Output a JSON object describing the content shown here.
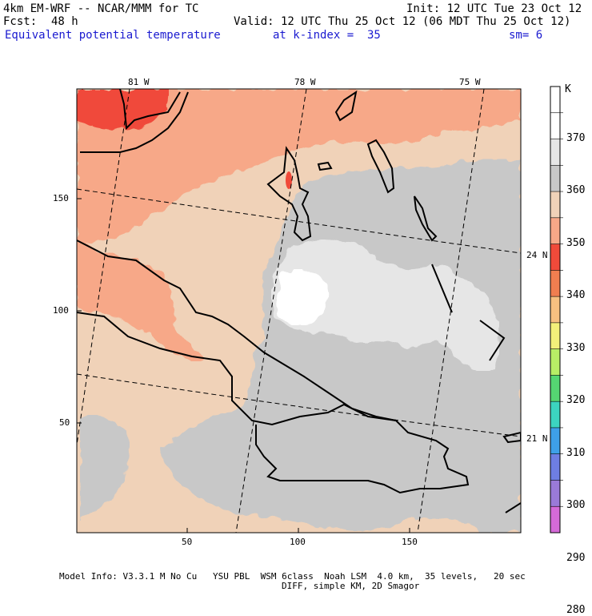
{
  "header": {
    "model": "4km EM-WRF -- NCAR/MMM for TC",
    "init": "Init: 12 UTC Tue 23 Oct 12",
    "fcst_label": "Fcst:",
    "fcst_value": "48 h",
    "valid": "Valid: 12 UTC Thu 25 Oct 12 (06 MDT Thu 25 Oct 12)",
    "field": "Equivalent potential temperature",
    "kindex": "at k-index =  35",
    "sm": "sm= 6"
  },
  "axes": {
    "lon_labels": [
      "81 W",
      "78 W",
      "75 W"
    ],
    "lat_labels": [
      "24 N",
      "21 N"
    ],
    "y_ticks": [
      "150",
      "100",
      "50"
    ],
    "x_ticks": [
      "50",
      "100",
      "150"
    ]
  },
  "colorbar": {
    "unit": "K",
    "levels": [
      "370",
      "360",
      "350",
      "340",
      "330",
      "320",
      "310",
      "300",
      "290",
      "280"
    ],
    "colors": [
      "#ffffff",
      "#ffffff",
      "#e6e6e6",
      "#c8c8c8",
      "#f0d2b8",
      "#f7a888",
      "#f04a3a",
      "#f07e50",
      "#f7c080",
      "#f3f07a",
      "#b8ee66",
      "#55d672",
      "#3cd4c0",
      "#3ea0e8",
      "#6e7ee2",
      "#9a7ad8",
      "#d56ad8"
    ]
  },
  "footer": {
    "line1": "Model Info: V3.3.1 M No Cu   YSU PBL  WSM 6class  Noah LSM  4.0 km,  35 levels,   20 sec",
    "line2": "DIFF, simple KM, 2D Smagor"
  }
}
